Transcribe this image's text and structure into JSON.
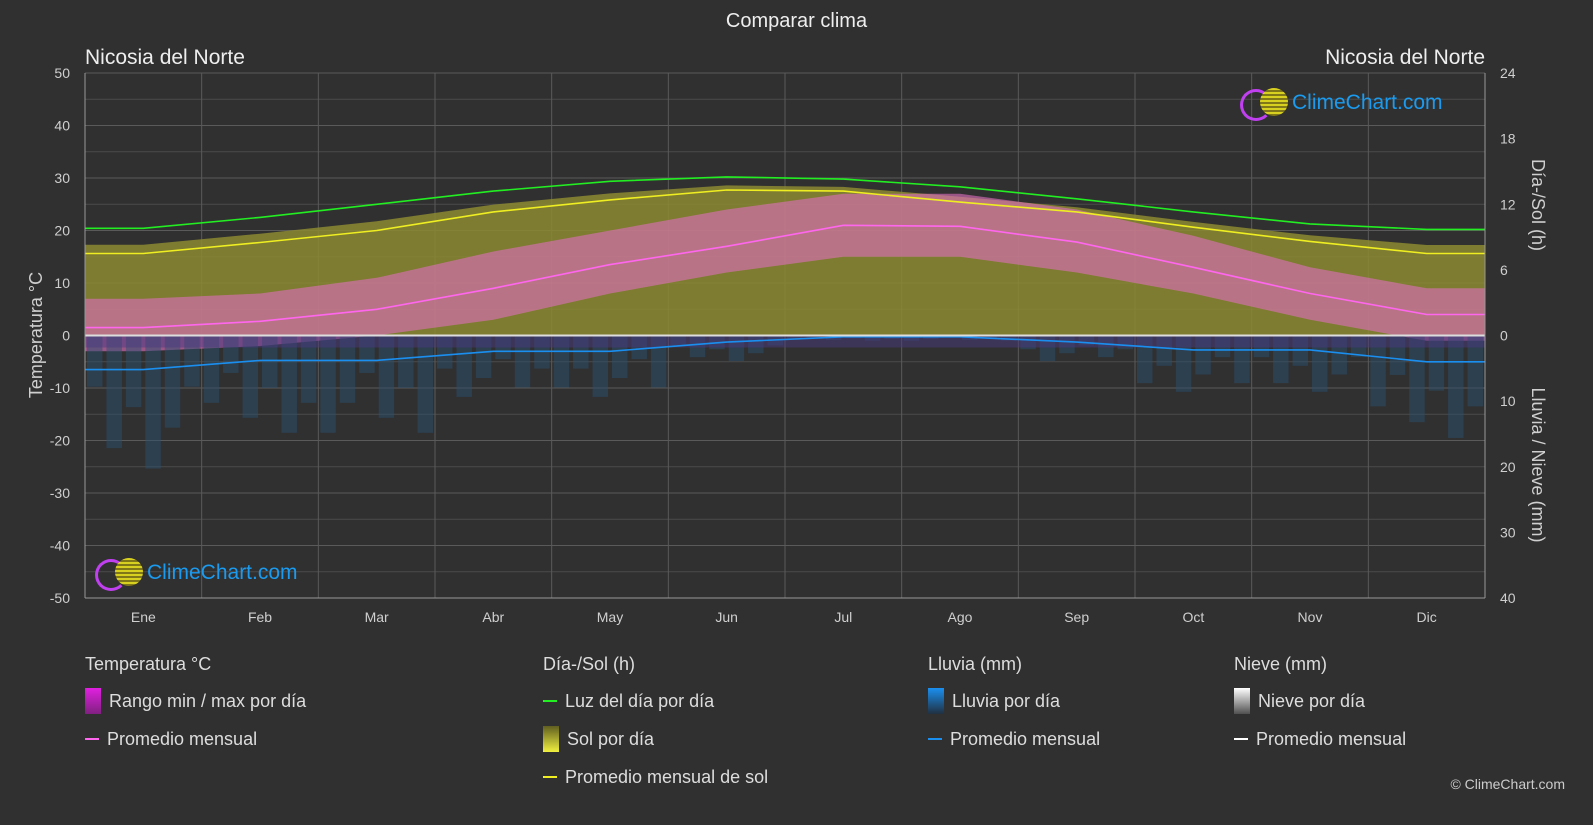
{
  "title": "Comparar clima",
  "city_left": "Nicosia del Norte",
  "city_right": "Nicosia del Norte",
  "logo_text": "ClimeChart.com",
  "copyright": "© ClimeChart.com",
  "chart_data": {
    "type": "line",
    "categories": [
      "Ene",
      "Feb",
      "Mar",
      "Abr",
      "May",
      "Jun",
      "Jul",
      "Ago",
      "Sep",
      "Oct",
      "Nov",
      "Dic"
    ],
    "ylabel_left": "Temperatura °C",
    "ylabel_right_top": "Día-/Sol (h)",
    "ylabel_right_bottom": "Lluvia / Nieve (mm)",
    "ylim_left": [
      -50,
      50
    ],
    "yticks_left": [
      "50",
      "40",
      "30",
      "20",
      "10",
      "0",
      "-10",
      "-20",
      "-30",
      "-40",
      "-50"
    ],
    "yticks_right_top": [
      "24",
      "18",
      "12",
      "6",
      "0"
    ],
    "yticks_right_bottom": [
      "10",
      "20",
      "30",
      "40"
    ],
    "ylim_hours": [
      0,
      24
    ],
    "ylim_precip_mm": [
      0,
      40
    ],
    "grid": true,
    "series": [
      {
        "name": "Promedio mensual temperatura",
        "unit": "°C",
        "color": "#ff66ee",
        "values": [
          1.5,
          2.7,
          5.0,
          9.0,
          13.5,
          17.0,
          21.0,
          20.8,
          17.8,
          13.0,
          8.0,
          4.0
        ]
      },
      {
        "name": "Rango min por día",
        "unit": "°C",
        "values": [
          -3,
          -2,
          0,
          3,
          8,
          12,
          15,
          15,
          12,
          8,
          3,
          -1
        ]
      },
      {
        "name": "Rango max por día",
        "unit": "°C",
        "values": [
          7,
          8,
          11,
          16,
          20,
          24,
          27,
          27,
          24,
          19,
          13,
          9
        ]
      },
      {
        "name": "Luz del día por día",
        "unit": "h",
        "color": "#22ee22",
        "values": [
          9.8,
          10.8,
          12.0,
          13.2,
          14.1,
          14.5,
          14.3,
          13.6,
          12.5,
          11.3,
          10.2,
          9.7
        ]
      },
      {
        "name": "Promedio mensual de sol",
        "unit": "h",
        "color": "#eeee22",
        "values": [
          7.5,
          8.5,
          9.6,
          11.3,
          12.4,
          13.3,
          13.2,
          12.2,
          11.3,
          9.9,
          8.6,
          7.5
        ]
      },
      {
        "name": "Promedio mensual lluvia",
        "unit": "mm",
        "color": "#1a8ff0",
        "values": [
          5.2,
          3.8,
          3.8,
          2.4,
          2.4,
          1.0,
          0.2,
          0.2,
          1.0,
          2.2,
          2.2,
          4.0
        ]
      }
    ]
  },
  "legend": {
    "temp": {
      "header": "Temperatura °C",
      "items": [
        "Rango min / max por día",
        "Promedio mensual"
      ]
    },
    "sun": {
      "header": "Día-/Sol (h)",
      "items": [
        "Luz del día por día",
        "Sol por día",
        "Promedio mensual de sol"
      ]
    },
    "rain": {
      "header": "Lluvia (mm)",
      "items": [
        "Lluvia por día",
        "Promedio mensual"
      ]
    },
    "snow": {
      "header": "Nieve (mm)",
      "items": [
        "Nieve por día",
        "Promedio mensual"
      ]
    }
  }
}
